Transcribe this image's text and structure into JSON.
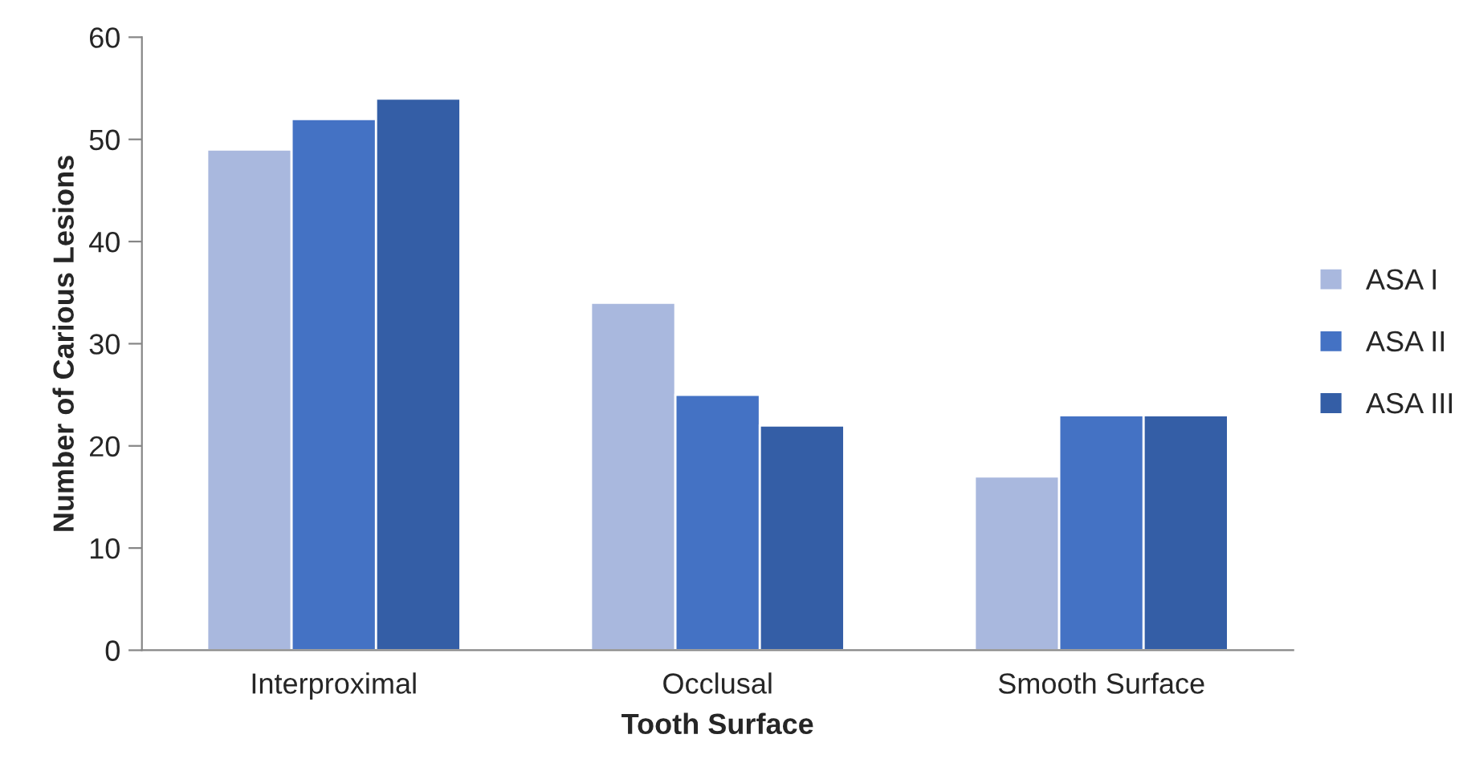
{
  "chart_data": {
    "type": "bar",
    "xlabel": "Tooth Surface",
    "ylabel": "Number of Carious Lesions",
    "categories": [
      "Interproximal",
      "Occlusal",
      "Smooth Surface"
    ],
    "series": [
      {
        "name": "ASA I",
        "color": "#a9b8de",
        "values": [
          49,
          34,
          17
        ]
      },
      {
        "name": "ASA II",
        "color": "#4472c4",
        "values": [
          52,
          25,
          23
        ]
      },
      {
        "name": "ASA III",
        "color": "#345ea6",
        "values": [
          54,
          22,
          23
        ]
      }
    ],
    "ylim": [
      0,
      60
    ],
    "yticks": [
      0,
      10,
      20,
      30,
      40,
      50,
      60
    ],
    "grid": false,
    "legend": "right"
  }
}
